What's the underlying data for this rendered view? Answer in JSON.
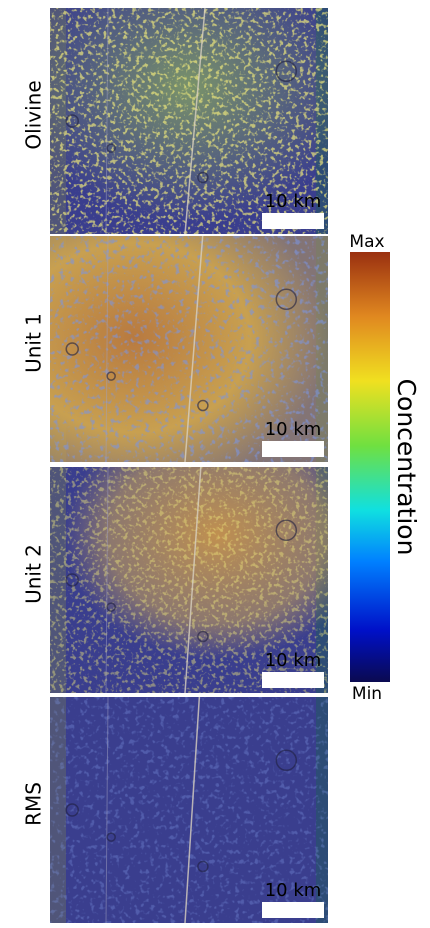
{
  "panels": [
    {
      "label": "Olivine",
      "scale": "10 km"
    },
    {
      "label": "Unit 1",
      "scale": "10 km"
    },
    {
      "label": "Unit 2",
      "scale": "10 km"
    },
    {
      "label": "RMS",
      "scale": "10 km"
    }
  ],
  "colorbar": {
    "max": "Max",
    "min": "Min",
    "label": "Concentration"
  }
}
